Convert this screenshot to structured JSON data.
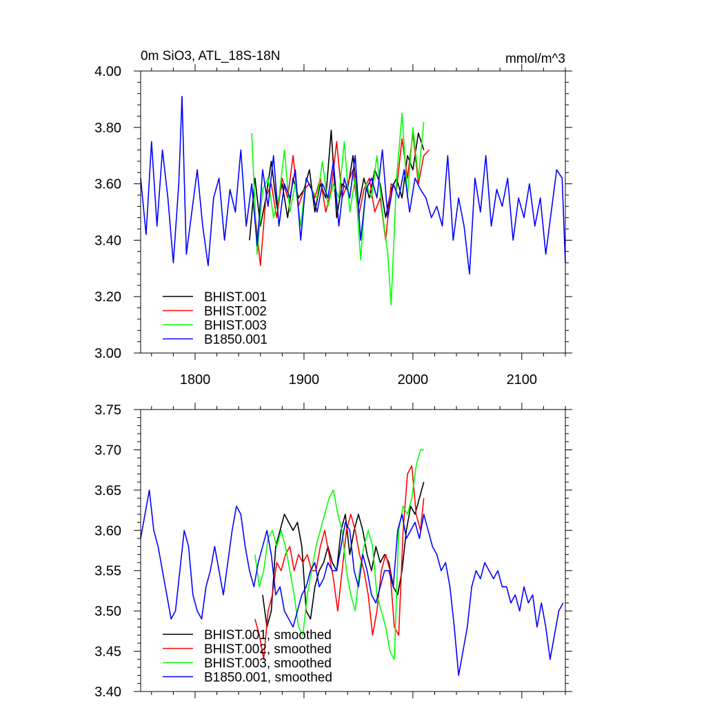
{
  "chart_data": [
    {
      "type": "line",
      "title": "0m SiO3, ATL_18S-18N",
      "units": "mmol/m^3",
      "xlabel": "",
      "ylabel": "",
      "xlim": [
        1750,
        2140
      ],
      "ylim": [
        3.0,
        4.0
      ],
      "xticks": [
        1800,
        1900,
        2000,
        2100
      ],
      "xtick_labels": [
        "1800",
        "1900",
        "2000",
        "2100"
      ],
      "yticks": [
        3.0,
        3.2,
        3.4,
        3.6,
        3.8,
        4.0
      ],
      "ytick_labels": [
        "3.00",
        "3.20",
        "3.40",
        "3.60",
        "3.80",
        "4.00"
      ],
      "legend_position": "bottom-left",
      "series": [
        {
          "name": "BHIST.001",
          "color": "#000000",
          "x": [
            1850,
            1855,
            1860,
            1865,
            1870,
            1875,
            1880,
            1885,
            1890,
            1895,
            1900,
            1905,
            1910,
            1915,
            1920,
            1925,
            1930,
            1935,
            1940,
            1945,
            1950,
            1955,
            1960,
            1965,
            1970,
            1975,
            1980,
            1985,
            1990,
            1995,
            2000,
            2005,
            2010
          ],
          "values": [
            3.4,
            3.62,
            3.45,
            3.55,
            3.68,
            3.52,
            3.6,
            3.48,
            3.62,
            3.55,
            3.58,
            3.65,
            3.5,
            3.6,
            3.55,
            3.79,
            3.48,
            3.6,
            3.58,
            3.7,
            3.52,
            3.62,
            3.55,
            3.65,
            3.6,
            3.48,
            3.58,
            3.62,
            3.55,
            3.7,
            3.65,
            3.78,
            3.72
          ]
        },
        {
          "name": "BHIST.002",
          "color": "#ff0000",
          "x": [
            1855,
            1860,
            1865,
            1870,
            1875,
            1880,
            1885,
            1890,
            1895,
            1900,
            1905,
            1910,
            1915,
            1920,
            1925,
            1930,
            1935,
            1940,
            1945,
            1950,
            1955,
            1960,
            1965,
            1970,
            1975,
            1980,
            1985,
            1990,
            1995,
            2000,
            2005,
            2010,
            2015
          ],
          "values": [
            3.5,
            3.31,
            3.55,
            3.6,
            3.48,
            3.62,
            3.55,
            3.7,
            3.52,
            3.58,
            3.6,
            3.55,
            3.62,
            3.5,
            3.58,
            3.75,
            3.55,
            3.6,
            3.65,
            3.48,
            3.58,
            3.62,
            3.5,
            3.55,
            3.4,
            3.6,
            3.58,
            3.76,
            3.62,
            3.78,
            3.6,
            3.7,
            3.72
          ]
        },
        {
          "name": "BHIST.003",
          "color": "#00ff00",
          "x": [
            1852,
            1857,
            1862,
            1867,
            1872,
            1877,
            1882,
            1887,
            1892,
            1897,
            1902,
            1907,
            1912,
            1917,
            1922,
            1927,
            1932,
            1937,
            1942,
            1947,
            1952,
            1957,
            1962,
            1967,
            1972,
            1977,
            1980,
            1985,
            1990,
            1995,
            2000,
            2005,
            2010
          ],
          "values": [
            3.78,
            3.35,
            3.58,
            3.62,
            3.48,
            3.55,
            3.72,
            3.5,
            3.6,
            3.45,
            3.62,
            3.58,
            3.55,
            3.68,
            3.52,
            3.6,
            3.55,
            3.75,
            3.5,
            3.62,
            3.33,
            3.6,
            3.55,
            3.7,
            3.5,
            3.35,
            3.17,
            3.62,
            3.85,
            3.55,
            3.8,
            3.62,
            3.82
          ]
        },
        {
          "name": "B1850.001",
          "color": "#0000ff",
          "x": [
            1750,
            1755,
            1760,
            1765,
            1770,
            1775,
            1780,
            1785,
            1788,
            1792,
            1797,
            1802,
            1807,
            1812,
            1817,
            1822,
            1827,
            1832,
            1837,
            1842,
            1847,
            1852,
            1857,
            1862,
            1867,
            1872,
            1877,
            1882,
            1887,
            1892,
            1897,
            1902,
            1907,
            1912,
            1917,
            1922,
            1927,
            1932,
            1937,
            1942,
            1947,
            1952,
            1957,
            1962,
            1967,
            1972,
            1977,
            1982,
            1987,
            1992,
            1997,
            2002,
            2007,
            2012,
            2017,
            2022,
            2027,
            2032,
            2037,
            2042,
            2047,
            2052,
            2057,
            2062,
            2067,
            2072,
            2077,
            2082,
            2087,
            2092,
            2097,
            2102,
            2107,
            2112,
            2117,
            2122,
            2127,
            2132,
            2137,
            2140
          ],
          "values": [
            3.62,
            3.42,
            3.75,
            3.45,
            3.72,
            3.55,
            3.32,
            3.6,
            3.91,
            3.35,
            3.5,
            3.65,
            3.45,
            3.31,
            3.55,
            3.62,
            3.4,
            3.58,
            3.5,
            3.72,
            3.45,
            3.6,
            3.38,
            3.65,
            3.52,
            3.7,
            3.45,
            3.6,
            3.55,
            3.65,
            3.4,
            3.62,
            3.58,
            3.5,
            3.6,
            3.55,
            3.68,
            3.45,
            3.62,
            3.55,
            3.7,
            3.4,
            3.58,
            3.62,
            3.55,
            3.72,
            3.48,
            3.6,
            3.55,
            3.65,
            3.5,
            3.62,
            3.58,
            3.55,
            3.48,
            3.52,
            3.45,
            3.7,
            3.4,
            3.55,
            3.45,
            3.28,
            3.62,
            3.5,
            3.7,
            3.45,
            3.58,
            3.52,
            3.62,
            3.4,
            3.55,
            3.48,
            3.6,
            3.45,
            3.55,
            3.35,
            3.5,
            3.65,
            3.62,
            3.32
          ]
        }
      ]
    },
    {
      "type": "line",
      "title": "",
      "xlabel": "",
      "ylabel": "",
      "xlim": [
        1750,
        2140
      ],
      "ylim": [
        3.4,
        3.75
      ],
      "xticks": [
        1800,
        1900,
        2000,
        2100
      ],
      "xtick_labels": [],
      "yticks": [
        3.4,
        3.45,
        3.5,
        3.55,
        3.6,
        3.65,
        3.7,
        3.75
      ],
      "ytick_labels": [
        "3.40",
        "3.45",
        "3.50",
        "3.55",
        "3.60",
        "3.65",
        "3.70",
        "3.75"
      ],
      "legend_position": "bottom-left",
      "series": [
        {
          "name": "BHIST.001, smoothed",
          "color": "#000000",
          "x": [
            1862,
            1866,
            1870,
            1874,
            1878,
            1882,
            1886,
            1890,
            1894,
            1898,
            1902,
            1906,
            1910,
            1914,
            1918,
            1922,
            1926,
            1930,
            1934,
            1938,
            1942,
            1946,
            1950,
            1954,
            1958,
            1962,
            1966,
            1970,
            1974,
            1978,
            1982,
            1986,
            1990,
            1994,
            1998,
            2002,
            2006,
            2010
          ],
          "values": [
            3.52,
            3.48,
            3.5,
            3.58,
            3.6,
            3.62,
            3.61,
            3.6,
            3.61,
            3.58,
            3.5,
            3.49,
            3.53,
            3.55,
            3.56,
            3.58,
            3.56,
            3.55,
            3.6,
            3.62,
            3.57,
            3.6,
            3.62,
            3.6,
            3.57,
            3.55,
            3.58,
            3.56,
            3.57,
            3.56,
            3.53,
            3.52,
            3.55,
            3.6,
            3.63,
            3.62,
            3.64,
            3.66
          ]
        },
        {
          "name": "BHIST.002, smoothed",
          "color": "#ff0000",
          "x": [
            1855,
            1859,
            1863,
            1867,
            1871,
            1875,
            1879,
            1883,
            1887,
            1891,
            1895,
            1899,
            1903,
            1907,
            1911,
            1915,
            1919,
            1923,
            1927,
            1931,
            1935,
            1939,
            1943,
            1947,
            1951,
            1955,
            1959,
            1963,
            1967,
            1971,
            1975,
            1979,
            1983,
            1987,
            1991,
            1995,
            1999,
            2003,
            2007,
            2010
          ],
          "values": [
            3.49,
            3.47,
            3.44,
            3.5,
            3.52,
            3.56,
            3.55,
            3.57,
            3.58,
            3.55,
            3.57,
            3.56,
            3.57,
            3.55,
            3.55,
            3.58,
            3.6,
            3.57,
            3.54,
            3.5,
            3.55,
            3.6,
            3.62,
            3.6,
            3.57,
            3.55,
            3.52,
            3.47,
            3.5,
            3.55,
            3.57,
            3.55,
            3.48,
            3.47,
            3.6,
            3.67,
            3.68,
            3.62,
            3.6,
            3.64
          ]
        },
        {
          "name": "BHIST.003, smoothed",
          "color": "#00ff00",
          "x": [
            1855,
            1859,
            1863,
            1867,
            1871,
            1875,
            1879,
            1883,
            1887,
            1891,
            1895,
            1899,
            1903,
            1907,
            1911,
            1915,
            1919,
            1923,
            1927,
            1931,
            1935,
            1939,
            1943,
            1947,
            1951,
            1955,
            1959,
            1963,
            1967,
            1971,
            1975,
            1979,
            1983,
            1987,
            1991,
            1995,
            1999,
            2003,
            2007,
            2010
          ],
          "values": [
            3.57,
            3.53,
            3.55,
            3.59,
            3.6,
            3.58,
            3.6,
            3.58,
            3.55,
            3.52,
            3.48,
            3.47,
            3.52,
            3.55,
            3.58,
            3.6,
            3.62,
            3.64,
            3.65,
            3.62,
            3.6,
            3.55,
            3.52,
            3.5,
            3.55,
            3.58,
            3.6,
            3.58,
            3.52,
            3.5,
            3.48,
            3.45,
            3.44,
            3.6,
            3.63,
            3.62,
            3.64,
            3.68,
            3.7,
            3.7
          ]
        },
        {
          "name": "B1850.001, smoothed",
          "color": "#0000ff",
          "x": [
            1750,
            1754,
            1758,
            1762,
            1766,
            1770,
            1774,
            1778,
            1782,
            1786,
            1790,
            1794,
            1798,
            1802,
            1806,
            1810,
            1814,
            1818,
            1822,
            1826,
            1830,
            1834,
            1838,
            1842,
            1846,
            1850,
            1854,
            1858,
            1862,
            1866,
            1870,
            1874,
            1878,
            1882,
            1886,
            1890,
            1894,
            1898,
            1902,
            1906,
            1910,
            1914,
            1918,
            1922,
            1926,
            1930,
            1934,
            1938,
            1942,
            1946,
            1950,
            1954,
            1958,
            1962,
            1966,
            1970,
            1974,
            1978,
            1982,
            1986,
            1990,
            1994,
            1998,
            2002,
            2006,
            2010,
            2014,
            2018,
            2022,
            2026,
            2030,
            2034,
            2038,
            2042,
            2046,
            2050,
            2054,
            2058,
            2062,
            2066,
            2070,
            2074,
            2078,
            2082,
            2086,
            2090,
            2094,
            2098,
            2102,
            2106,
            2110,
            2114,
            2118,
            2122,
            2126,
            2130,
            2134,
            2138
          ],
          "values": [
            3.59,
            3.62,
            3.65,
            3.6,
            3.58,
            3.55,
            3.52,
            3.49,
            3.5,
            3.55,
            3.6,
            3.58,
            3.52,
            3.5,
            3.49,
            3.53,
            3.55,
            3.58,
            3.55,
            3.52,
            3.56,
            3.6,
            3.63,
            3.62,
            3.58,
            3.55,
            3.53,
            3.56,
            3.58,
            3.6,
            3.57,
            3.52,
            3.53,
            3.5,
            3.49,
            3.48,
            3.5,
            3.52,
            3.53,
            3.55,
            3.56,
            3.53,
            3.54,
            3.56,
            3.55,
            3.55,
            3.58,
            3.61,
            3.6,
            3.55,
            3.53,
            3.57,
            3.55,
            3.52,
            3.51,
            3.53,
            3.55,
            3.55,
            3.53,
            3.6,
            3.62,
            3.59,
            3.6,
            3.61,
            3.59,
            3.62,
            3.6,
            3.58,
            3.57,
            3.55,
            3.56,
            3.53,
            3.48,
            3.42,
            3.45,
            3.48,
            3.53,
            3.55,
            3.54,
            3.56,
            3.55,
            3.54,
            3.55,
            3.53,
            3.53,
            3.51,
            3.52,
            3.5,
            3.53,
            3.51,
            3.52,
            3.48,
            3.51,
            3.48,
            3.44,
            3.47,
            3.5,
            3.51
          ]
        }
      ]
    }
  ]
}
